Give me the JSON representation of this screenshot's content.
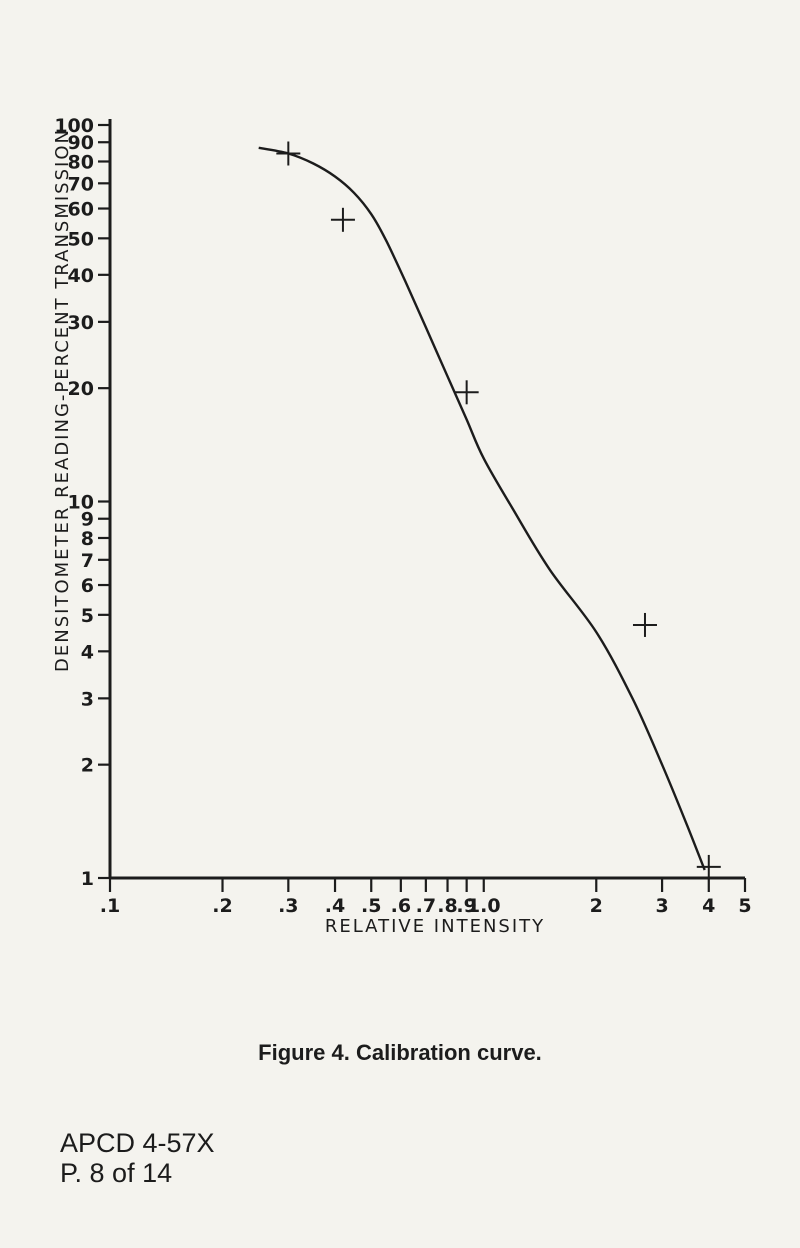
{
  "chart_data": {
    "type": "line",
    "title": "",
    "xlabel": "RELATIVE INTENSITY",
    "ylabel": "DENSITOMETER READING-PERCENT TRANSMISSION",
    "xscale": "log",
    "yscale": "log",
    "xlim": [
      0.1,
      5
    ],
    "ylim": [
      1,
      100
    ],
    "x_ticks": [
      ".1",
      ".2",
      ".3",
      ".4",
      ".5",
      ".6",
      ".7",
      ".8",
      ".9",
      "1.0",
      "2",
      "3",
      "4",
      "5"
    ],
    "y_ticks": [
      "1",
      "2",
      "3",
      "4",
      "5",
      "6",
      "7",
      "8",
      "9",
      "10",
      "20",
      "30",
      "40",
      "50",
      "60",
      "70",
      "80",
      "90",
      "100"
    ],
    "grid": false,
    "series": [
      {
        "curve_x": [
          0.25,
          0.3,
          0.35,
          0.4,
          0.45,
          0.5,
          0.55,
          0.62,
          0.7,
          0.8,
          0.9,
          1.0,
          1.2,
          1.5,
          2.0,
          2.5,
          3.0,
          3.5,
          3.9
        ],
        "curve_y": [
          87,
          84,
          79,
          73,
          66,
          58,
          49,
          38,
          29,
          21.5,
          16.5,
          13,
          9.5,
          6.6,
          4.5,
          3.0,
          2.0,
          1.38,
          1.05
        ],
        "markers_x": [
          0.3,
          0.42,
          0.9,
          2.7,
          4.0
        ],
        "markers_y": [
          84,
          56,
          19.5,
          4.7,
          1.07
        ]
      }
    ],
    "caption": "Figure 4.  Calibration curve."
  },
  "document": {
    "id_line1": "APCD 4-57X",
    "id_line2": "P. 8 of 14"
  },
  "colors": {
    "ink": "#1c1c1c",
    "paper": "#f4f3ee"
  }
}
